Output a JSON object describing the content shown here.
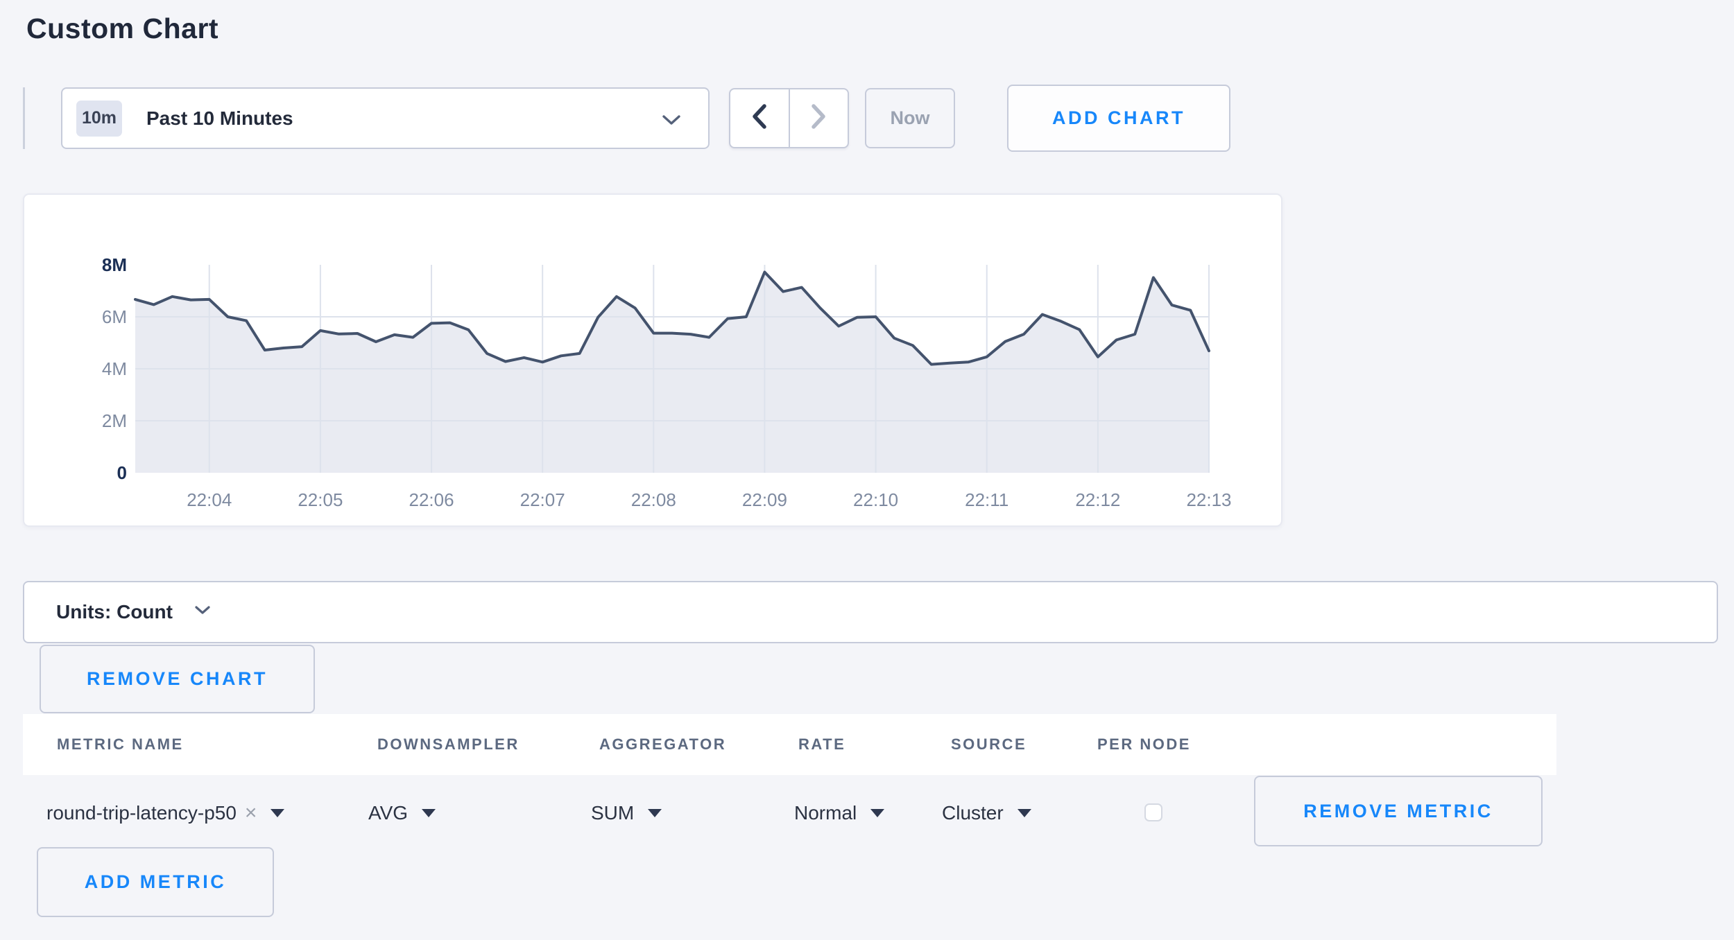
{
  "page": {
    "title": "Custom Chart"
  },
  "colors": {
    "accent_blue": "#1787fa",
    "line": "#44536d",
    "fill": "#e9ebf2",
    "grid": "#dde2ec",
    "axis_bold": "#1b2f55",
    "axis_muted": "#7e8aa0",
    "page_bg": "#f4f5f9"
  },
  "toolbar": {
    "time_badge": "10m",
    "time_label": "Past 10 Minutes",
    "now_label": "Now",
    "add_chart_label": "ADD CHART"
  },
  "chart_data": {
    "type": "area",
    "title": "",
    "xlabel": "",
    "ylabel": "",
    "x_start": "22:03:20",
    "sample_interval_seconds": 10,
    "x_ticks": [
      "22:04",
      "22:05",
      "22:06",
      "22:07",
      "22:08",
      "22:09",
      "22:10",
      "22:11",
      "22:12",
      "22:13"
    ],
    "first_tick_offset_samples": 4,
    "samples_per_tick": 6,
    "ylim": [
      0,
      8000000
    ],
    "y_ticks": [
      {
        "label": "0",
        "value": 0,
        "bold": true,
        "grid": false
      },
      {
        "label": "2M",
        "value": 2,
        "bold": false,
        "grid": true
      },
      {
        "label": "4M",
        "value": 4,
        "bold": false,
        "grid": true
      },
      {
        "label": "6M",
        "value": 6,
        "bold": false,
        "grid": true
      },
      {
        "label": "8M",
        "value": 8,
        "bold": true,
        "grid": false
      }
    ],
    "values_unit": "millions",
    "values_millions": [
      6.67,
      6.47,
      6.78,
      6.65,
      6.67,
      6.0,
      5.85,
      4.72,
      4.8,
      4.85,
      5.47,
      5.34,
      5.36,
      5.04,
      5.31,
      5.21,
      5.75,
      5.77,
      5.5,
      4.59,
      4.28,
      4.43,
      4.26,
      4.5,
      4.59,
      5.98,
      6.78,
      6.34,
      5.37,
      5.37,
      5.33,
      5.21,
      5.93,
      6.0,
      7.72,
      6.97,
      7.13,
      6.34,
      5.64,
      5.98,
      6.0,
      5.18,
      4.9,
      4.17,
      4.22,
      4.26,
      4.46,
      5.05,
      5.33,
      6.09,
      5.83,
      5.51,
      4.46,
      5.11,
      5.33,
      7.51,
      6.45,
      6.25,
      4.69
    ]
  },
  "units_bar": {
    "label": "Units: Count"
  },
  "buttons": {
    "remove_chart": "REMOVE CHART",
    "remove_metric": "REMOVE METRIC",
    "add_metric": "ADD METRIC"
  },
  "table": {
    "headers": [
      "METRIC NAME",
      "DOWNSAMPLER",
      "AGGREGATOR",
      "RATE",
      "SOURCE",
      "PER NODE"
    ],
    "row": {
      "metric_name": "round-trip-latency-p50",
      "clear_icon": "×",
      "downsampler": "AVG",
      "aggregator": "SUM",
      "rate": "Normal",
      "source": "Cluster",
      "per_node_checked": false
    }
  }
}
